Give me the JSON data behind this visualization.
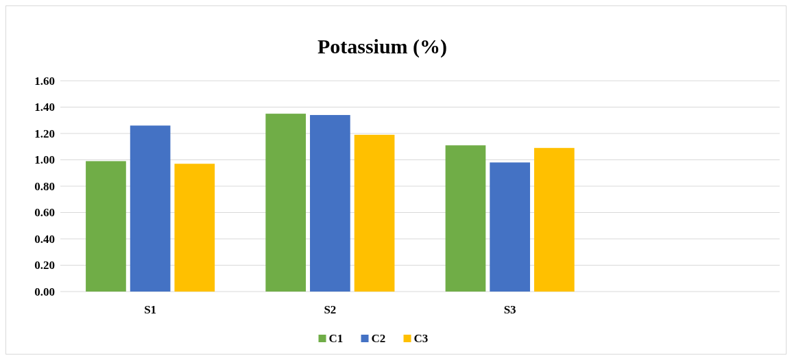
{
  "chart_data": {
    "type": "bar",
    "title": "Potassium (%)",
    "categories": [
      "S1",
      "S2",
      "S3",
      null
    ],
    "series": [
      {
        "name": "C1",
        "color": "#70ad47",
        "values": [
          0.99,
          1.35,
          1.11,
          null
        ]
      },
      {
        "name": "C2",
        "color": "#4472c4",
        "values": [
          1.26,
          1.34,
          0.98,
          null
        ]
      },
      {
        "name": "C3",
        "color": "#ffc000",
        "values": [
          0.97,
          1.19,
          1.09,
          null
        ]
      }
    ],
    "ylim": [
      0,
      1.6
    ],
    "yticks": [
      {
        "value": 0,
        "label": "0.00"
      },
      {
        "value": 0.2,
        "label": "0.20"
      },
      {
        "value": 0.4,
        "label": "0.40"
      },
      {
        "value": 0.6,
        "label": "0.60"
      },
      {
        "value": 0.8,
        "label": "0.80"
      },
      {
        "value": 1,
        "label": "1.00"
      },
      {
        "value": 1.2,
        "label": "1.20"
      },
      {
        "value": 1.4,
        "label": "1.40"
      },
      {
        "value": 1.6,
        "label": "1.60"
      }
    ],
    "grid": "y",
    "legend": "bottom"
  }
}
